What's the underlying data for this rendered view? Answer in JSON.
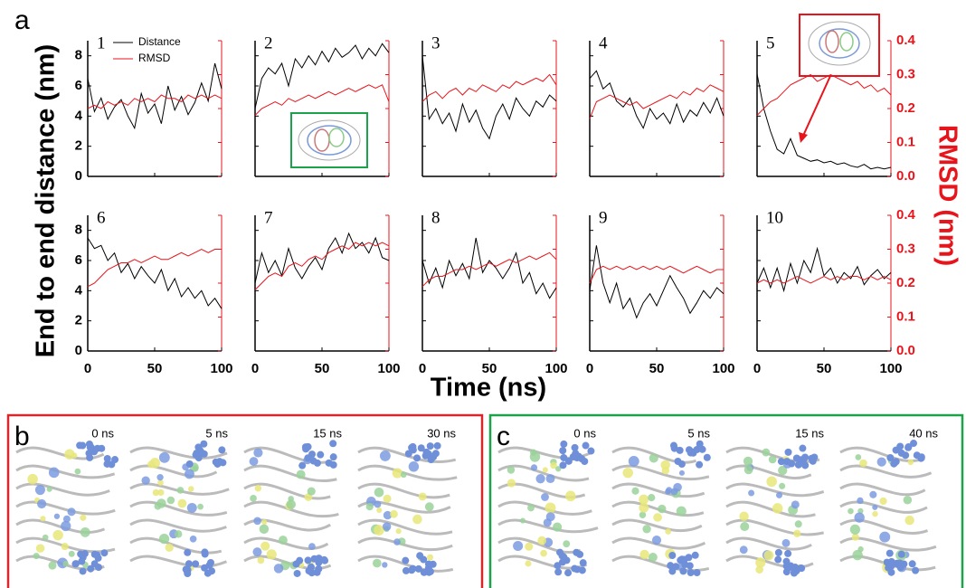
{
  "figure": {
    "label": "a",
    "xlabel": "Time (ns)",
    "ylabel": "End to end distance (nm)",
    "y2label": "RMSD (nm)",
    "axes": {
      "xlim": [
        0,
        100
      ],
      "xticks": [
        0,
        50,
        100
      ],
      "ylim": [
        0,
        9
      ],
      "yticks": [
        0,
        2,
        4,
        6,
        8
      ],
      "y2lim": [
        0,
        0.4
      ],
      "y2ticks": [
        {
          "value": 0,
          "label": "0.0"
        },
        0.1,
        0.2,
        0.3,
        0.4
      ]
    }
  },
  "chart_data": [
    {
      "type": "line",
      "title": "1",
      "legend": "upper left",
      "x": [
        0,
        5,
        10,
        15,
        20,
        25,
        30,
        35,
        40,
        45,
        50,
        55,
        60,
        65,
        70,
        75,
        80,
        85,
        90,
        95,
        100
      ],
      "series": [
        {
          "name": "Distance",
          "color": "#000000",
          "values": [
            6.5,
            4.3,
            5.2,
            3.8,
            4.6,
            5.1,
            4.0,
            3.2,
            5.5,
            4.2,
            4.8,
            3.5,
            6.0,
            4.4,
            5.3,
            4.1,
            4.9,
            6.2,
            5.0,
            7.5,
            5.8
          ]
        },
        {
          "name": "RMSD",
          "color": "#e8141b",
          "axis": "y2",
          "values": [
            0.2,
            0.21,
            0.2,
            0.22,
            0.21,
            0.22,
            0.21,
            0.23,
            0.22,
            0.23,
            0.22,
            0.24,
            0.23,
            0.23,
            0.22,
            0.24,
            0.23,
            0.24,
            0.23,
            0.24,
            0.23
          ]
        }
      ]
    },
    {
      "type": "line",
      "title": "2",
      "x": [
        0,
        5,
        10,
        15,
        20,
        25,
        30,
        35,
        40,
        45,
        50,
        55,
        60,
        65,
        70,
        75,
        80,
        85,
        90,
        95,
        100
      ],
      "series": [
        {
          "color": "#000000",
          "values": [
            4.5,
            6.5,
            7.2,
            6.8,
            7.5,
            6.0,
            7.8,
            7.2,
            8.0,
            7.4,
            8.3,
            7.6,
            8.5,
            7.9,
            8.2,
            8.7,
            7.8,
            8.5,
            8.0,
            8.8,
            8.2
          ]
        },
        {
          "color": "#e8141b",
          "axis": "y2",
          "values": [
            0.18,
            0.2,
            0.21,
            0.22,
            0.21,
            0.23,
            0.22,
            0.23,
            0.24,
            0.23,
            0.24,
            0.25,
            0.24,
            0.25,
            0.26,
            0.25,
            0.26,
            0.27,
            0.26,
            0.27,
            0.22
          ]
        }
      ]
    },
    {
      "type": "line",
      "title": "3",
      "x": [
        0,
        5,
        10,
        15,
        20,
        25,
        30,
        35,
        40,
        45,
        50,
        55,
        60,
        65,
        70,
        75,
        80,
        85,
        90,
        95,
        100
      ],
      "series": [
        {
          "color": "#000000",
          "values": [
            8.0,
            3.8,
            4.5,
            3.5,
            4.2,
            3.0,
            4.8,
            3.6,
            4.4,
            3.2,
            2.5,
            4.0,
            4.8,
            3.8,
            5.2,
            4.5,
            4.0,
            5.0,
            4.6,
            5.4,
            5.0
          ]
        },
        {
          "color": "#e8141b",
          "axis": "y2",
          "values": [
            0.22,
            0.24,
            0.25,
            0.23,
            0.25,
            0.26,
            0.24,
            0.26,
            0.25,
            0.27,
            0.26,
            0.25,
            0.27,
            0.26,
            0.28,
            0.27,
            0.28,
            0.29,
            0.28,
            0.3,
            0.27
          ]
        }
      ]
    },
    {
      "type": "line",
      "title": "4",
      "x": [
        0,
        5,
        10,
        15,
        20,
        25,
        30,
        35,
        40,
        45,
        50,
        55,
        60,
        65,
        70,
        75,
        80,
        85,
        90,
        95,
        100
      ],
      "series": [
        {
          "color": "#000000",
          "values": [
            6.5,
            7.0,
            5.8,
            6.2,
            5.0,
            4.6,
            5.2,
            4.0,
            3.2,
            4.5,
            3.8,
            4.2,
            3.5,
            4.8,
            3.6,
            4.4,
            4.0,
            4.9,
            4.2,
            5.2,
            4.0
          ]
        },
        {
          "color": "#e8141b",
          "axis": "y2",
          "values": [
            0.17,
            0.22,
            0.23,
            0.24,
            0.23,
            0.22,
            0.21,
            0.22,
            0.2,
            0.21,
            0.22,
            0.23,
            0.24,
            0.23,
            0.25,
            0.24,
            0.26,
            0.25,
            0.27,
            0.26,
            0.25
          ]
        }
      ]
    },
    {
      "type": "line",
      "title": "5",
      "x": [
        0,
        5,
        10,
        15,
        20,
        25,
        30,
        35,
        40,
        45,
        50,
        55,
        60,
        65,
        70,
        75,
        80,
        85,
        90,
        95,
        100
      ],
      "series": [
        {
          "color": "#000000",
          "values": [
            6.8,
            4.5,
            3.0,
            1.8,
            1.5,
            2.5,
            1.4,
            1.2,
            1.0,
            1.1,
            0.9,
            1.0,
            0.8,
            0.9,
            0.7,
            0.6,
            0.8,
            0.5,
            0.6,
            0.5,
            0.6
          ]
        },
        {
          "color": "#e8141b",
          "axis": "y2",
          "values": [
            0.18,
            0.2,
            0.22,
            0.23,
            0.25,
            0.27,
            0.28,
            0.29,
            0.3,
            0.28,
            0.29,
            0.3,
            0.29,
            0.28,
            0.27,
            0.28,
            0.26,
            0.27,
            0.25,
            0.26,
            0.24
          ]
        }
      ]
    },
    {
      "type": "line",
      "title": "6",
      "x": [
        0,
        5,
        10,
        15,
        20,
        25,
        30,
        35,
        40,
        45,
        50,
        55,
        60,
        65,
        70,
        75,
        80,
        85,
        90,
        95,
        100
      ],
      "series": [
        {
          "color": "#000000",
          "values": [
            7.5,
            6.8,
            7.0,
            6.0,
            6.5,
            5.2,
            5.8,
            4.8,
            5.6,
            5.0,
            4.5,
            5.4,
            4.0,
            4.8,
            3.6,
            4.2,
            3.5,
            4.0,
            3.0,
            3.5,
            2.8
          ]
        },
        {
          "color": "#e8141b",
          "axis": "y2",
          "values": [
            0.19,
            0.2,
            0.22,
            0.24,
            0.25,
            0.26,
            0.26,
            0.27,
            0.26,
            0.27,
            0.28,
            0.27,
            0.27,
            0.28,
            0.29,
            0.28,
            0.29,
            0.3,
            0.29,
            0.3,
            0.3
          ]
        }
      ]
    },
    {
      "type": "line",
      "title": "7",
      "x": [
        0,
        5,
        10,
        15,
        20,
        25,
        30,
        35,
        40,
        45,
        50,
        55,
        60,
        65,
        70,
        75,
        80,
        85,
        90,
        95,
        100
      ],
      "series": [
        {
          "color": "#000000",
          "values": [
            4.5,
            6.5,
            5.2,
            6.0,
            5.0,
            6.8,
            5.5,
            4.8,
            5.6,
            6.2,
            5.4,
            6.8,
            7.5,
            6.5,
            7.8,
            6.8,
            7.2,
            6.5,
            7.5,
            6.2,
            6.0
          ]
        },
        {
          "color": "#e8141b",
          "axis": "y2",
          "values": [
            0.18,
            0.2,
            0.22,
            0.23,
            0.22,
            0.25,
            0.26,
            0.25,
            0.27,
            0.28,
            0.27,
            0.29,
            0.3,
            0.31,
            0.3,
            0.32,
            0.31,
            0.32,
            0.31,
            0.32,
            0.31
          ]
        }
      ]
    },
    {
      "type": "line",
      "title": "8",
      "x": [
        0,
        5,
        10,
        15,
        20,
        25,
        30,
        35,
        40,
        45,
        50,
        55,
        60,
        65,
        70,
        75,
        80,
        85,
        90,
        95,
        100
      ],
      "series": [
        {
          "color": "#000000",
          "values": [
            6.0,
            4.5,
            5.5,
            4.2,
            6.0,
            5.0,
            5.8,
            4.8,
            7.5,
            5.2,
            6.0,
            5.5,
            4.8,
            5.5,
            6.5,
            4.5,
            5.2,
            3.8,
            4.5,
            3.5,
            4.2
          ]
        },
        {
          "color": "#e8141b",
          "axis": "y2",
          "values": [
            0.19,
            0.21,
            0.22,
            0.22,
            0.23,
            0.24,
            0.24,
            0.25,
            0.24,
            0.25,
            0.26,
            0.25,
            0.26,
            0.27,
            0.26,
            0.27,
            0.28,
            0.27,
            0.28,
            0.29,
            0.27
          ]
        }
      ]
    },
    {
      "type": "line",
      "title": "9",
      "x": [
        0,
        5,
        10,
        15,
        20,
        25,
        30,
        35,
        40,
        45,
        50,
        55,
        60,
        65,
        70,
        75,
        80,
        85,
        90,
        95,
        100
      ],
      "series": [
        {
          "color": "#000000",
          "values": [
            4.0,
            7.0,
            4.5,
            3.2,
            4.5,
            2.8,
            3.5,
            2.2,
            3.2,
            3.8,
            3.0,
            4.0,
            5.0,
            4.2,
            3.5,
            2.5,
            3.2,
            4.0,
            3.5,
            4.2,
            3.8
          ]
        },
        {
          "color": "#e8141b",
          "axis": "y2",
          "values": [
            0.2,
            0.24,
            0.25,
            0.24,
            0.25,
            0.24,
            0.25,
            0.24,
            0.25,
            0.24,
            0.25,
            0.24,
            0.25,
            0.24,
            0.23,
            0.24,
            0.25,
            0.24,
            0.23,
            0.24,
            0.24
          ]
        }
      ]
    },
    {
      "type": "line",
      "title": "10",
      "x": [
        0,
        5,
        10,
        15,
        20,
        25,
        30,
        35,
        40,
        45,
        50,
        55,
        60,
        65,
        70,
        75,
        80,
        85,
        90,
        95,
        100
      ],
      "series": [
        {
          "color": "#000000",
          "values": [
            4.5,
            5.5,
            4.2,
            5.5,
            4.0,
            5.8,
            4.5,
            6.0,
            5.2,
            6.8,
            5.0,
            5.5,
            4.5,
            5.2,
            4.8,
            5.6,
            4.4,
            5.0,
            5.4,
            4.8,
            5.2
          ]
        },
        {
          "color": "#e8141b",
          "axis": "y2",
          "values": [
            0.2,
            0.21,
            0.2,
            0.21,
            0.2,
            0.21,
            0.22,
            0.21,
            0.2,
            0.21,
            0.22,
            0.21,
            0.22,
            0.21,
            0.22,
            0.22,
            0.21,
            0.22,
            0.21,
            0.22,
            0.21
          ]
        }
      ]
    }
  ],
  "panels": [
    {
      "label": "b",
      "color": "#d9262b",
      "times": [
        "0 ns",
        "5 ns",
        "15 ns",
        "30 ns"
      ]
    },
    {
      "label": "c",
      "color": "#1aa34a",
      "times": [
        "0 ns",
        "5 ns",
        "15 ns",
        "40 ns"
      ]
    }
  ]
}
